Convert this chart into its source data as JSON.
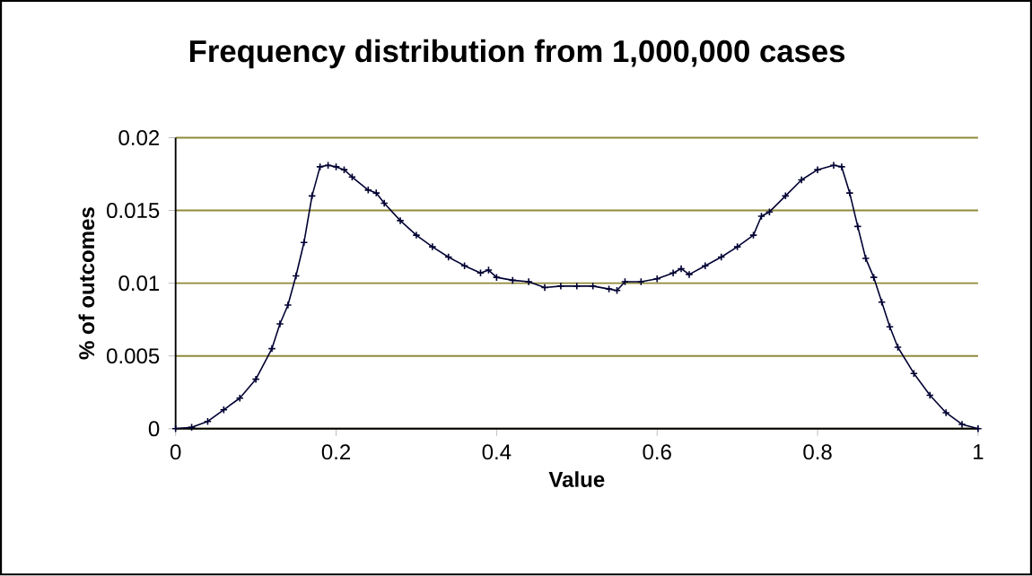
{
  "chart_data": {
    "type": "line",
    "title": "Frequency distribution from 1,000,000 cases",
    "xlabel": "Value",
    "ylabel": "% of outcomes",
    "x": [
      0,
      0.02,
      0.04,
      0.06,
      0.08,
      0.1,
      0.12,
      0.13,
      0.14,
      0.15,
      0.16,
      0.17,
      0.18,
      0.19,
      0.2,
      0.21,
      0.22,
      0.24,
      0.25,
      0.26,
      0.28,
      0.3,
      0.32,
      0.34,
      0.36,
      0.38,
      0.39,
      0.4,
      0.42,
      0.44,
      0.46,
      0.48,
      0.5,
      0.52,
      0.54,
      0.55,
      0.56,
      0.58,
      0.6,
      0.62,
      0.63,
      0.64,
      0.66,
      0.68,
      0.7,
      0.72,
      0.73,
      0.74,
      0.76,
      0.78,
      0.8,
      0.82,
      0.83,
      0.84,
      0.85,
      0.86,
      0.87,
      0.88,
      0.89,
      0.9,
      0.92,
      0.94,
      0.96,
      0.98,
      1.0
    ],
    "series": [
      {
        "color": "#000033",
        "values": [
          0,
          0.0001,
          0.0005,
          0.0013,
          0.0021,
          0.0034,
          0.0055,
          0.0072,
          0.0085,
          0.0105,
          0.0128,
          0.016,
          0.018,
          0.0181,
          0.018,
          0.0178,
          0.0173,
          0.0164,
          0.0162,
          0.0155,
          0.0143,
          0.0133,
          0.0125,
          0.0118,
          0.0112,
          0.0107,
          0.0109,
          0.0104,
          0.0102,
          0.0101,
          0.0097,
          0.0098,
          0.0098,
          0.0098,
          0.0096,
          0.0095,
          0.0101,
          0.0101,
          0.0103,
          0.0107,
          0.011,
          0.0106,
          0.0112,
          0.0118,
          0.0125,
          0.0133,
          0.0146,
          0.0149,
          0.016,
          0.0171,
          0.0178,
          0.0181,
          0.018,
          0.0162,
          0.0139,
          0.0117,
          0.0104,
          0.0087,
          0.007,
          0.0056,
          0.0038,
          0.0023,
          0.0011,
          0.0003,
          0
        ]
      }
    ],
    "xlim": [
      0,
      1
    ],
    "ylim": [
      0,
      0.02
    ],
    "xticks": [
      0,
      0.2,
      0.4,
      0.6,
      0.8,
      1
    ],
    "yticks": [
      0,
      0.005,
      0.01,
      0.015,
      0.02
    ],
    "grid": "y",
    "marker": "cross",
    "line_style": "solid"
  }
}
